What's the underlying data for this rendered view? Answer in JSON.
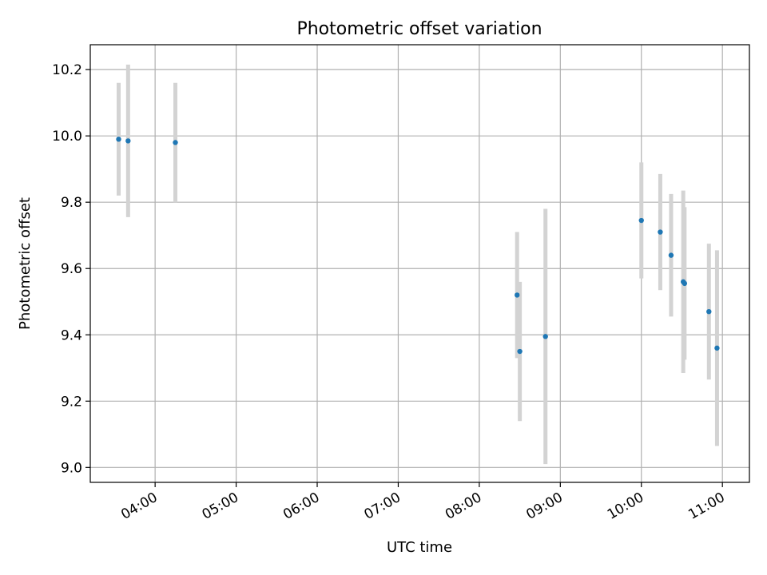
{
  "chart_data": {
    "type": "scatter",
    "title": "Photometric offset variation",
    "xlabel": "UTC time",
    "ylabel": "Photometric offset",
    "xlim": [
      "03:12",
      "11:20"
    ],
    "ylim": [
      8.955,
      10.275
    ],
    "xticks": [
      "04:00",
      "05:00",
      "06:00",
      "07:00",
      "08:00",
      "09:00",
      "10:00",
      "11:00"
    ],
    "yticks": [
      "9.0",
      "9.2",
      "9.4",
      "9.6",
      "9.8",
      "10.0",
      "10.2"
    ],
    "grid": true,
    "colors": {
      "marker": "#1f77b4",
      "errorbar": "#d3d3d3",
      "grid": "#b0b0b0"
    },
    "points": [
      {
        "x": "03:33",
        "y": 9.99,
        "yerr": 0.17
      },
      {
        "x": "03:40",
        "y": 9.985,
        "yerr": 0.23
      },
      {
        "x": "04:15",
        "y": 9.98,
        "yerr": 0.18
      },
      {
        "x": "08:28",
        "y": 9.52,
        "yerr": 0.19
      },
      {
        "x": "08:30",
        "y": 9.35,
        "yerr": 0.21
      },
      {
        "x": "08:49",
        "y": 9.395,
        "yerr": 0.385
      },
      {
        "x": "10:00",
        "y": 9.745,
        "yerr": 0.175
      },
      {
        "x": "10:14",
        "y": 9.71,
        "yerr": 0.175
      },
      {
        "x": "10:22",
        "y": 9.64,
        "yerr": 0.185
      },
      {
        "x": "10:31",
        "y": 9.56,
        "yerr": 0.275
      },
      {
        "x": "10:32",
        "y": 9.555,
        "yerr": 0.23
      },
      {
        "x": "10:50",
        "y": 9.47,
        "yerr": 0.205
      },
      {
        "x": "10:56",
        "y": 9.36,
        "yerr": 0.295
      }
    ]
  }
}
